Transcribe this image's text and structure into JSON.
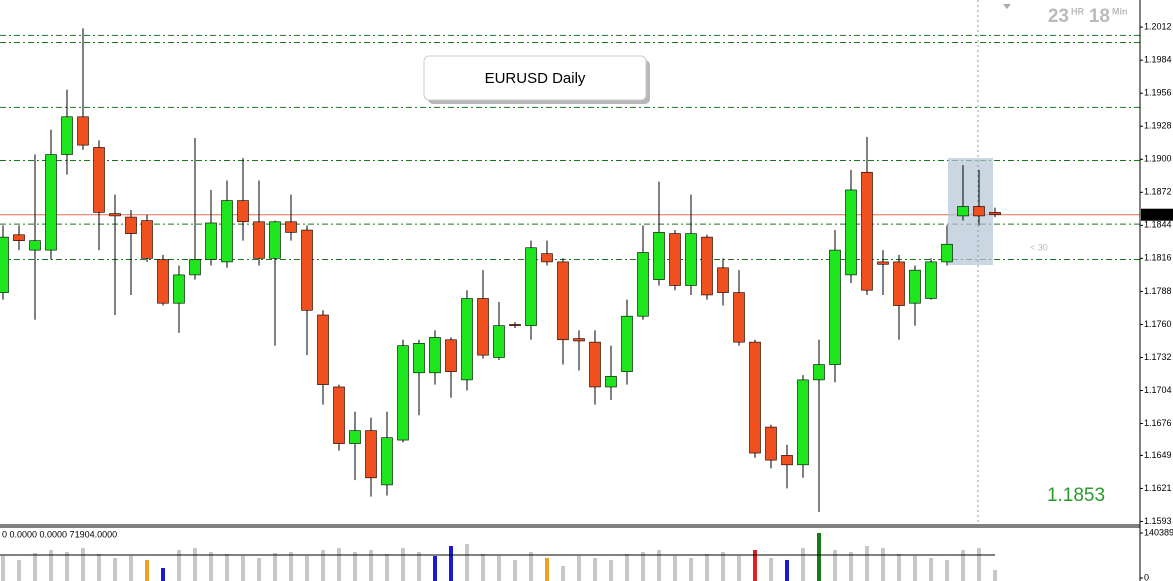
{
  "chart_data": {
    "type": "candlestick",
    "title": "EURUSD Daily",
    "timer": {
      "hours": "23",
      "hours_unit": "HR",
      "minutes": "18",
      "minutes_unit": "Min"
    },
    "annotation": "< 30",
    "categories": [
      null,
      null,
      null,
      null,
      null,
      null,
      null,
      null,
      null,
      null,
      null,
      null,
      null,
      null,
      null,
      null,
      null,
      null,
      null,
      null,
      null,
      null,
      null,
      null,
      null,
      null,
      null,
      null,
      null,
      null,
      null,
      null,
      null,
      null,
      null,
      null,
      null,
      null,
      null,
      null,
      null,
      null,
      null,
      null,
      null,
      null,
      null,
      null,
      null,
      null,
      null,
      null,
      null,
      null,
      null,
      null,
      null,
      null,
      null,
      null,
      null,
      null,
      null
    ],
    "open": [
      1.1787,
      1.1836,
      1.1823,
      1.1823,
      1.1904,
      1.1936,
      1.191,
      1.1854,
      1.1851,
      1.1848,
      1.1815,
      1.1778,
      1.1802,
      1.1815,
      1.1813,
      1.1865,
      1.1847,
      1.1816,
      1.1847,
      1.184,
      1.1768,
      1.1707,
      1.1659,
      1.167,
      1.1624,
      1.1662,
      1.1719,
      1.1719,
      1.1747,
      1.1713,
      1.1782,
      1.1732,
      1.176,
      1.1759,
      1.182,
      1.1813,
      1.1748,
      1.1745,
      1.1707,
      1.172,
      1.1767,
      1.1798,
      1.1837,
      1.1793,
      1.1834,
      1.1808,
      1.1787,
      1.1745,
      1.1673,
      1.1649,
      1.1641,
      1.1713,
      1.1726,
      1.1802,
      1.1889,
      1.1813,
      1.1813,
      1.1778,
      1.1782,
      1.1813,
      1.1852,
      1.186,
      1.1855
    ],
    "high": [
      1.1844,
      1.1844,
      1.1904,
      1.1925,
      1.1959,
      1.2011,
      1.1916,
      1.187,
      1.1857,
      1.1853,
      1.1819,
      1.181,
      1.1918,
      1.1874,
      1.1882,
      1.1901,
      1.1882,
      1.1848,
      1.187,
      1.1844,
      1.1772,
      1.1709,
      1.1686,
      1.1681,
      1.1686,
      1.1747,
      1.1747,
      1.1755,
      1.1749,
      1.1789,
      1.1806,
      1.1779,
      1.1762,
      1.1831,
      1.1831,
      1.1816,
      1.1755,
      1.1755,
      1.1742,
      1.1781,
      1.1844,
      1.1881,
      1.184,
      1.187,
      1.1836,
      1.1816,
      1.1806,
      1.1747,
      1.1675,
      1.1658,
      1.1717,
      1.1747,
      1.184,
      1.1891,
      1.1919,
      1.1823,
      1.1819,
      1.181,
      1.1816,
      1.1844,
      1.1895,
      1.1891,
      1.1859
    ],
    "low": [
      1.1781,
      1.1823,
      1.1764,
      1.1815,
      1.1887,
      1.1908,
      1.1823,
      1.1768,
      1.1785,
      1.1813,
      1.1776,
      1.1753,
      1.1798,
      1.181,
      1.1808,
      1.1831,
      1.181,
      1.1742,
      1.1831,
      1.1734,
      1.1692,
      1.1653,
      1.1628,
      1.1614,
      1.1615,
      1.166,
      1.1683,
      1.1709,
      1.1698,
      1.1704,
      1.1731,
      1.173,
      1.1757,
      1.1747,
      1.181,
      1.1726,
      1.1721,
      1.1692,
      1.1696,
      1.1709,
      1.1764,
      1.1793,
      1.1789,
      1.1785,
      1.1781,
      1.1776,
      1.1742,
      1.1647,
      1.1638,
      1.1621,
      1.163,
      1.1601,
      1.1711,
      1.1795,
      1.1785,
      1.1785,
      1.1747,
      1.1759,
      1.1781,
      1.181,
      1.1848,
      1.1844,
      1.1851
    ],
    "close": [
      1.1834,
      1.1831,
      1.1831,
      1.1904,
      1.1936,
      1.1912,
      1.1855,
      1.1852,
      1.1837,
      1.1816,
      1.1778,
      1.1802,
      1.1815,
      1.1846,
      1.1865,
      1.1847,
      1.1816,
      1.1847,
      1.1838,
      1.1772,
      1.1709,
      1.1659,
      1.167,
      1.163,
      1.1664,
      1.1742,
      1.1744,
      1.1749,
      1.172,
      1.1782,
      1.1734,
      1.1759,
      1.1759,
      1.1825,
      1.1813,
      1.1747,
      1.1746,
      1.1707,
      1.1716,
      1.1767,
      1.1821,
      1.1838,
      1.1793,
      1.1837,
      1.1785,
      1.1787,
      1.1745,
      1.1651,
      1.1645,
      1.1641,
      1.1713,
      1.1726,
      1.1823,
      1.1874,
      1.1789,
      1.1811,
      1.1776,
      1.1806,
      1.1813,
      1.1828,
      1.186,
      1.1852,
      1.1853
    ],
    "up_color": "#1ee61e",
    "down_color": "#f0501e",
    "levels": [
      1.2005,
      1.1999,
      1.1944,
      1.1899,
      1.1845,
      1.1815
    ],
    "level_color": "#1a7a1a",
    "last_price": 1.1853,
    "last_price_color": "#e07050",
    "ylim": [
      1.159,
      1.2035
    ],
    "yticks": [
      1.2012,
      1.1984,
      1.1956,
      1.1928,
      {
        "value": 1.19,
        "label": "1.1900"
      },
      1.1872,
      1.1844,
      1.1816,
      1.1788,
      {
        "value": 1.176,
        "label": "1.1760"
      },
      1.1732,
      1.1704,
      1.1676,
      1.1649,
      1.1621,
      1.1593
    ],
    "volume": {
      "header": "0 0.0000 0.0000 71904.0000",
      "average": 71904,
      "ylim": [
        0,
        140389
      ],
      "yticks": [
        0,
        140389
      ],
      "values": [
        68600,
        56200,
        78000,
        87400,
        81100,
        93600,
        74900,
        62400,
        68600,
        56200,
        31200,
        87400,
        93600,
        81100,
        74900,
        68600,
        62400,
        78000,
        81100,
        68600,
        87400,
        93600,
        81100,
        87400,
        74900,
        93600,
        81100,
        68600,
        99800,
        106100,
        74900,
        68600,
        56200,
        81100,
        62400,
        37400,
        68600,
        62400,
        56200,
        74900,
        81100,
        87400,
        68600,
        62400,
        74900,
        81100,
        68600,
        87400,
        62400,
        56200,
        93600,
        140389,
        87400,
        81100,
        99800,
        93600,
        74900,
        68600,
        62400,
        56200,
        87400,
        93600,
        25000
      ],
      "colors": [
        "#c8c8c8",
        "#c8c8c8",
        "#c8c8c8",
        "#c8c8c8",
        "#c8c8c8",
        "#c8c8c8",
        "#c8c8c8",
        "#c8c8c8",
        "#c8c8c8",
        "#f0a020",
        "#1a1ad0",
        "#c8c8c8",
        "#c8c8c8",
        "#c8c8c8",
        "#c8c8c8",
        "#c8c8c8",
        "#c8c8c8",
        "#c8c8c8",
        "#c8c8c8",
        "#c8c8c8",
        "#c8c8c8",
        "#c8c8c8",
        "#c8c8c8",
        "#c8c8c8",
        "#c8c8c8",
        "#c8c8c8",
        "#c8c8c8",
        "#1a1ad0",
        "#1a1ad0",
        "#c8c8c8",
        "#c8c8c8",
        "#c8c8c8",
        "#c8c8c8",
        "#c8c8c8",
        "#f0a020",
        "#c8c8c8",
        "#c8c8c8",
        "#c8c8c8",
        "#c8c8c8",
        "#c8c8c8",
        "#c8c8c8",
        "#c8c8c8",
        "#c8c8c8",
        "#c8c8c8",
        "#c8c8c8",
        "#c8c8c8",
        "#c8c8c8",
        "#e02020",
        "#c8c8c8",
        "#1a1ad0",
        "#c8c8c8",
        "#1a7a1a",
        "#c8c8c8",
        "#c8c8c8",
        "#c8c8c8",
        "#c8c8c8",
        "#c8c8c8",
        "#c8c8c8",
        "#c8c8c8",
        "#c8c8c8",
        "#c8c8c8",
        "#c8c8c8",
        "#c8c8c8"
      ]
    }
  }
}
